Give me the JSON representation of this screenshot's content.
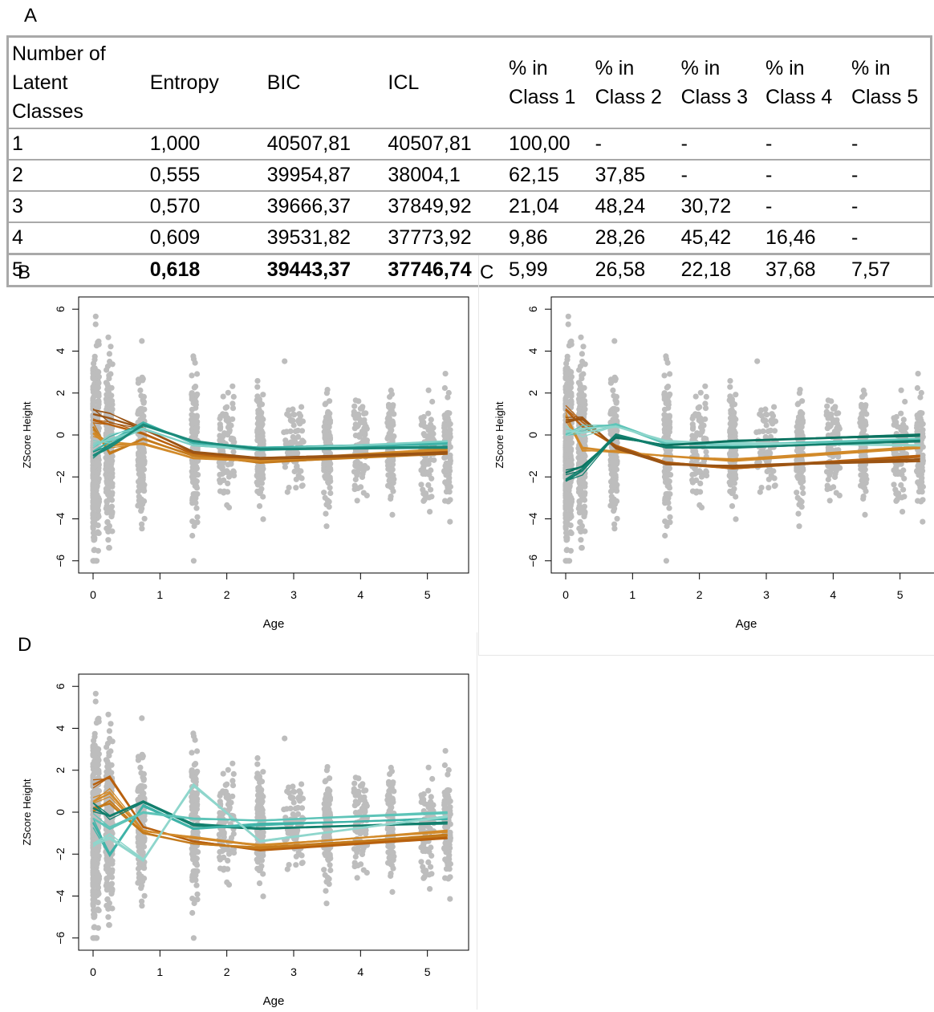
{
  "panel_labels": {
    "a": "A",
    "b": "B",
    "c": "C",
    "d": "D"
  },
  "table": {
    "headers": [
      [
        "Number of",
        "Latent Classes"
      ],
      [
        "Entropy"
      ],
      [
        "BIC"
      ],
      [
        "ICL"
      ],
      [
        "% in",
        "Class 1"
      ],
      [
        "% in",
        "Class 2"
      ],
      [
        "% in",
        "Class 3"
      ],
      [
        "% in",
        "Class 4"
      ],
      [
        "% in",
        "Class 5"
      ]
    ],
    "rows": [
      [
        "1",
        "1,000",
        "40507,81",
        "40507,81",
        "100,00",
        "-",
        "-",
        "-",
        "-"
      ],
      [
        "2",
        "0,555",
        "39954,87",
        "38004,1",
        "62,15",
        "37,85",
        "-",
        "-",
        "-"
      ],
      [
        "3",
        "0,570",
        "39666,37",
        "37849,92",
        "21,04",
        "48,24",
        "30,72",
        "-",
        "-"
      ],
      [
        "4",
        "0,609",
        "39531,82",
        "37773,92",
        "9,86",
        "28,26",
        "45,42",
        "16,46",
        "-"
      ],
      [
        "5",
        "0,618",
        "39443,37",
        "37746,74",
        "5,99",
        "26,58",
        "22,18",
        "37,68",
        "7,57"
      ]
    ],
    "bold_cells": [
      [
        4,
        1
      ],
      [
        4,
        2
      ],
      [
        4,
        3
      ]
    ]
  },
  "chart_data": [
    {
      "panel": "B",
      "type": "scatter",
      "xlabel": "Age",
      "ylabel": "ZScore Height",
      "xlim": [
        0,
        5.4
      ],
      "ylim": [
        -6.2,
        6.2
      ],
      "xticks": [
        "0",
        "1",
        "2",
        "3",
        "4",
        "5"
      ],
      "yticks": [
        "6",
        "4",
        "2",
        "0",
        "−2",
        "−4",
        "−6"
      ],
      "grid": false,
      "point_color": "#bdbdbd",
      "x": [
        0,
        0.25,
        0.75,
        1.5,
        2.5,
        5.3
      ],
      "series": [
        {
          "color": "#b8610f",
          "values": [
            0.7,
            0.5,
            0.05,
            -0.9,
            -1.2,
            -0.8
          ]
        },
        {
          "color": "#c47a1c",
          "values": [
            0.4,
            -0.9,
            -0.2,
            -1.0,
            -1.3,
            -0.9
          ]
        },
        {
          "color": "#d28a2a",
          "values": [
            0.1,
            -0.5,
            -0.4,
            -1.1,
            -1.2,
            -0.7
          ]
        },
        {
          "color": "#9b5414",
          "values": [
            1.0,
            0.8,
            0.3,
            -0.8,
            -1.1,
            -0.85
          ]
        },
        {
          "color": "#3fb3a8",
          "values": [
            -0.8,
            -0.3,
            0.6,
            -0.4,
            -0.6,
            -0.4
          ]
        },
        {
          "color": "#7fd0c6",
          "values": [
            -0.5,
            -0.2,
            0.3,
            -0.5,
            -0.7,
            -0.3
          ]
        },
        {
          "color": "#1b8a7a",
          "values": [
            -1.0,
            -0.6,
            0.5,
            -0.3,
            -0.7,
            -0.6
          ]
        }
      ]
    },
    {
      "panel": "C",
      "type": "scatter",
      "xlabel": "Age",
      "ylabel": "ZScore Height",
      "xlim": [
        0,
        5.4
      ],
      "ylim": [
        -6.2,
        6.2
      ],
      "xticks": [
        "0",
        "1",
        "2",
        "3",
        "4",
        "5"
      ],
      "yticks": [
        "6",
        "4",
        "2",
        "0",
        "−2",
        "−4",
        "−6"
      ],
      "grid": false,
      "point_color": "#bdbdbd",
      "x": [
        0,
        0.25,
        0.75,
        1.5,
        2.5,
        5.3
      ],
      "series": [
        {
          "color": "#b8610f",
          "values": [
            1.2,
            0.4,
            -0.5,
            -1.3,
            -1.6,
            -1.0
          ]
        },
        {
          "color": "#d28a2a",
          "values": [
            0.9,
            -0.6,
            -0.8,
            -1.0,
            -1.2,
            -0.6
          ]
        },
        {
          "color": "#9b5414",
          "values": [
            0.6,
            0.8,
            -0.6,
            -1.4,
            -1.5,
            -1.2
          ]
        },
        {
          "color": "#5ec4b8",
          "values": [
            0.0,
            0.3,
            0.5,
            -0.4,
            -0.5,
            -0.2
          ]
        },
        {
          "color": "#8fd6cc",
          "values": [
            0.2,
            0.1,
            0.4,
            -0.3,
            -0.4,
            -0.5
          ]
        },
        {
          "color": "#0b7360",
          "values": [
            -1.8,
            -1.5,
            -0.1,
            -0.5,
            -0.3,
            0.0
          ]
        },
        {
          "color": "#127f6d",
          "values": [
            -2.2,
            -1.7,
            0.0,
            -0.6,
            -0.6,
            -0.3
          ]
        }
      ]
    },
    {
      "panel": "D",
      "type": "scatter",
      "xlabel": "Age",
      "ylabel": "ZScore Height",
      "xlim": [
        0,
        5.4
      ],
      "ylim": [
        -6.2,
        6.2
      ],
      "xticks": [
        "0",
        "1",
        "2",
        "3",
        "4",
        "5"
      ],
      "yticks": [
        "6",
        "4",
        "2",
        "0",
        "−2",
        "−4",
        "−6"
      ],
      "grid": false,
      "point_color": "#bdbdbd",
      "x": [
        0,
        0.25,
        0.75,
        1.5,
        2.5,
        5.3
      ],
      "series": [
        {
          "color": "#b8610f",
          "values": [
            1.3,
            1.7,
            -0.7,
            -1.4,
            -1.8,
            -1.2
          ]
        },
        {
          "color": "#d28a2a",
          "values": [
            0.5,
            0.9,
            -0.9,
            -1.2,
            -1.6,
            -0.9
          ]
        },
        {
          "color": "#c47a1c",
          "values": [
            0.2,
            0.4,
            -1.0,
            -1.5,
            -1.7,
            -1.1
          ]
        },
        {
          "color": "#127f6d",
          "values": [
            0.2,
            -0.2,
            0.5,
            -0.6,
            -0.8,
            -0.5
          ]
        },
        {
          "color": "#3fb3a8",
          "values": [
            -0.5,
            -2.0,
            0.3,
            -0.8,
            -0.6,
            -0.3
          ]
        },
        {
          "color": "#8fd6cc",
          "values": [
            -1.5,
            -1.2,
            -2.3,
            1.3,
            -1.4,
            -0.2
          ]
        },
        {
          "color": "#5ec4b8",
          "values": [
            -0.3,
            -0.8,
            0.0,
            -0.3,
            -0.4,
            0.0
          ]
        }
      ]
    }
  ]
}
